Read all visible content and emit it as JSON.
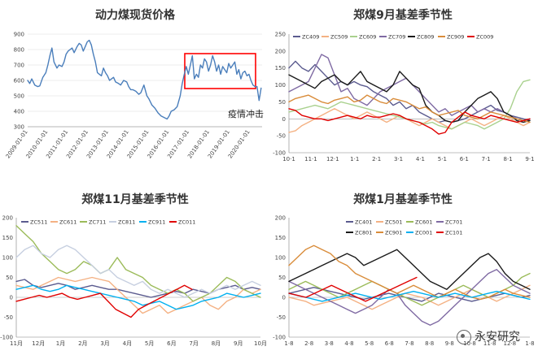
{
  "chart_data": [
    {
      "type": "line",
      "title": "动力煤现货价格",
      "ylim": [
        300,
        900
      ],
      "yticks": [
        300,
        400,
        500,
        600,
        700,
        800,
        900
      ],
      "xlim": [
        2009.0,
        2020.6
      ],
      "xticks": [
        "2009-01-01",
        "2010-01-01",
        "2011-01-01",
        "2012-01-01",
        "2013-01-01",
        "2014-01-01",
        "2015-01-01",
        "2016-01-01",
        "2017-01-01",
        "2018-01-01",
        "2019-01-01",
        "2020-01-01"
      ],
      "series": [
        {
          "color": "#4a7ebb",
          "x": [
            2009.0,
            2009.1,
            2009.2,
            2009.35,
            2009.5,
            2009.6,
            2009.75,
            2009.9,
            2010.0,
            2010.1,
            2010.2,
            2010.3,
            2010.45,
            2010.55,
            2010.7,
            2010.8,
            2010.9,
            2011.0,
            2011.1,
            2011.2,
            2011.3,
            2011.45,
            2011.55,
            2011.65,
            2011.75,
            2011.85,
            2011.95,
            2012.05,
            2012.15,
            2012.25,
            2012.35,
            2012.45,
            2012.55,
            2012.65,
            2012.75,
            2012.85,
            2012.95,
            2013.05,
            2013.15,
            2013.25,
            2013.35,
            2013.5,
            2013.6,
            2013.75,
            2013.9,
            2014.0,
            2014.1,
            2014.2,
            2014.35,
            2014.5,
            2014.6,
            2014.75,
            2014.9,
            2015.0,
            2015.15,
            2015.3,
            2015.45,
            2015.6,
            2015.75,
            2015.9,
            2016.0,
            2016.1,
            2016.25,
            2016.4,
            2016.55,
            2016.65,
            2016.75,
            2016.85,
            2016.95,
            2017.05,
            2017.15,
            2017.25,
            2017.35,
            2017.45,
            2017.55,
            2017.65,
            2017.75,
            2017.85,
            2017.95,
            2018.05,
            2018.15,
            2018.25,
            2018.35,
            2018.45,
            2018.55,
            2018.65,
            2018.75,
            2018.85,
            2018.95,
            2019.05,
            2019.15,
            2019.25,
            2019.35,
            2019.45,
            2019.55,
            2019.65,
            2019.75,
            2019.85,
            2019.95,
            2020.05,
            2020.15,
            2020.25,
            2020.35,
            2020.45,
            2020.55
          ],
          "y": [
            600,
            580,
            610,
            570,
            560,
            565,
            620,
            650,
            700,
            760,
            810,
            720,
            680,
            700,
            690,
            720,
            770,
            790,
            800,
            810,
            780,
            820,
            840,
            830,
            790,
            820,
            850,
            860,
            830,
            770,
            720,
            650,
            640,
            630,
            680,
            650,
            630,
            600,
            610,
            620,
            590,
            580,
            570,
            600,
            590,
            560,
            540,
            540,
            530,
            510,
            520,
            570,
            500,
            480,
            440,
            420,
            390,
            370,
            360,
            350,
            370,
            400,
            410,
            430,
            500,
            580,
            640,
            690,
            640,
            700,
            760,
            610,
            640,
            620,
            700,
            680,
            740,
            720,
            660,
            700,
            760,
            720,
            660,
            700,
            640,
            690,
            670,
            650,
            710,
            680,
            700,
            720,
            640,
            670,
            610,
            650,
            660,
            630,
            640,
            600,
            570,
            560,
            560,
            470,
            550
          ]
        }
      ],
      "annotations": [
        {
          "text": "疫情冲击"
        }
      ]
    },
    {
      "type": "line",
      "title": "郑煤9月基差季节性",
      "ylim": [
        -100,
        250
      ],
      "yticks": [
        -100,
        -50,
        0,
        50,
        100,
        150,
        200,
        250
      ],
      "xticks": [
        "10·1",
        "11·1",
        "12·1",
        "1·1",
        "2·1",
        "3·1",
        "4·1",
        "5·1",
        "6·1",
        "7·1",
        "8·1",
        "9·1"
      ],
      "series": [
        {
          "name": "ZC409",
          "color": "#5b5b8f",
          "y": [
            150,
            170,
            150,
            140,
            160,
            140,
            120,
            100,
            110,
            100,
            110,
            100,
            95,
            80,
            70,
            60,
            40,
            50,
            30,
            40,
            20,
            10,
            0,
            -10,
            -5,
            -10,
            -5,
            0,
            10,
            20,
            30,
            40,
            25,
            20,
            10,
            5,
            0,
            -5
          ]
        },
        {
          "name": "ZC509",
          "color": "#f4b183",
          "y": [
            -40,
            -35,
            -20,
            -10,
            0,
            10,
            20,
            30,
            20,
            10,
            0,
            10,
            20,
            10,
            0,
            -10,
            0,
            10,
            0,
            -10,
            -20,
            -10,
            0,
            -10,
            -20,
            -30,
            -20,
            -10,
            0,
            -10,
            -20,
            -10,
            0,
            10,
            0,
            -10,
            -20,
            -10
          ]
        },
        {
          "name": "ZC609",
          "color": "#a9d18e",
          "y": [
            20,
            25,
            30,
            35,
            40,
            35,
            30,
            40,
            50,
            45,
            40,
            35,
            30,
            25,
            20,
            15,
            10,
            5,
            0,
            -5,
            -10,
            -15,
            -10,
            -20,
            -25,
            -30,
            -20,
            -10,
            -15,
            -20,
            -30,
            -20,
            -10,
            0,
            30,
            80,
            110,
            115
          ]
        },
        {
          "name": "ZC709",
          "color": "#7f6aa3",
          "y": [
            80,
            90,
            100,
            110,
            150,
            190,
            180,
            130,
            80,
            90,
            60,
            50,
            40,
            60,
            80,
            90,
            100,
            110,
            120,
            100,
            80,
            60,
            40,
            20,
            30,
            10,
            20,
            30,
            40,
            20,
            30,
            20,
            30,
            20,
            10,
            0,
            -5,
            0
          ]
        },
        {
          "name": "ZC809",
          "color": "#1a1a1a",
          "y": [
            130,
            120,
            110,
            100,
            90,
            110,
            120,
            130,
            110,
            100,
            120,
            140,
            110,
            100,
            90,
            80,
            100,
            140,
            120,
            100,
            90,
            40,
            20,
            10,
            -5,
            -10,
            -5,
            20,
            40,
            60,
            70,
            80,
            60,
            20,
            10,
            -5,
            -10,
            -5
          ]
        },
        {
          "name": "ZC909",
          "color": "#d98c3a",
          "y": [
            50,
            60,
            65,
            70,
            60,
            50,
            45,
            55,
            60,
            65,
            50,
            55,
            70,
            60,
            50,
            45,
            60,
            55,
            50,
            40,
            30,
            35,
            20,
            10,
            15,
            20,
            25,
            10,
            5,
            0,
            10,
            20,
            15,
            10,
            5,
            0,
            -5,
            -10
          ]
        },
        {
          "name": "ZC009",
          "color": "#e00000",
          "y": [
            30,
            25,
            10,
            5,
            0,
            0,
            -5,
            0,
            5,
            10,
            5,
            0,
            10,
            5,
            5,
            10,
            15,
            10,
            0,
            -5,
            -10,
            -20,
            -30,
            -45,
            -40,
            -10,
            5,
            20,
            10,
            5,
            0,
            10,
            5,
            0,
            -5,
            -10,
            -5,
            0
          ]
        }
      ]
    },
    {
      "type": "line",
      "title": "郑煤11月基差季节性",
      "ylim": [
        -100,
        200
      ],
      "yticks": [
        -100,
        -50,
        0,
        50,
        100,
        150,
        200
      ],
      "xticks": [
        "11月",
        "12月",
        "1月",
        "2月",
        "3月",
        "4月",
        "5月",
        "6月",
        "7月",
        "8月",
        "9月",
        "10月"
      ],
      "series": [
        {
          "name": "ZC511",
          "color": "#5b5b8f",
          "y": [
            40,
            45,
            30,
            25,
            30,
            35,
            30,
            20,
            25,
            30,
            25,
            20,
            20,
            15,
            10,
            5,
            0,
            5,
            10,
            15,
            10,
            20,
            15,
            10,
            20,
            25,
            30,
            20,
            25,
            20
          ]
        },
        {
          "name": "ZC611",
          "color": "#f4b183",
          "y": [
            30,
            25,
            20,
            30,
            40,
            50,
            45,
            40,
            45,
            50,
            45,
            40,
            20,
            0,
            -20,
            -40,
            -30,
            -20,
            -40,
            -30,
            -20,
            -10,
            0,
            -20,
            -30,
            -10,
            0,
            20,
            10,
            20
          ]
        },
        {
          "name": "ZC711",
          "color": "#9bbb59",
          "y": [
            180,
            160,
            140,
            110,
            90,
            70,
            60,
            70,
            90,
            80,
            60,
            70,
            100,
            70,
            60,
            50,
            30,
            20,
            10,
            20,
            10,
            -10,
            0,
            10,
            30,
            50,
            40,
            20,
            10,
            0
          ]
        },
        {
          "name": "ZC811",
          "color": "#c6cfe0",
          "y": [
            100,
            120,
            130,
            110,
            100,
            120,
            130,
            120,
            100,
            80,
            60,
            70,
            50,
            40,
            30,
            40,
            20,
            10,
            20,
            10,
            0,
            10,
            20,
            10,
            20,
            30,
            20,
            30,
            40,
            30
          ]
        },
        {
          "name": "ZC911",
          "color": "#00b0f0",
          "y": [
            20,
            25,
            30,
            20,
            15,
            20,
            30,
            25,
            20,
            15,
            10,
            5,
            0,
            -5,
            -10,
            -20,
            -15,
            -10,
            -20,
            -30,
            -25,
            -20,
            -10,
            -5,
            0,
            10,
            5,
            0,
            5,
            10
          ]
        },
        {
          "name": "ZC011",
          "color": "#e00000",
          "y": [
            -10,
            -5,
            0,
            5,
            0,
            5,
            10,
            0,
            -5,
            0,
            5,
            10,
            -10,
            -30,
            -40,
            -50,
            -30,
            -20,
            -10,
            0,
            10,
            20,
            30,
            20
          ]
        }
      ]
    },
    {
      "type": "line",
      "title": "郑煤1月基差季节性",
      "ylim": [
        -100,
        200
      ],
      "yticks": [
        -100,
        -50,
        0,
        50,
        100,
        150,
        200
      ],
      "xticks": [
        "1·8",
        "2·8",
        "3·8",
        "4·8",
        "5·8",
        "6·8",
        "7·8",
        "8·8",
        "9·8",
        "10·8",
        "11·8",
        "12·8",
        "1·8"
      ],
      "series": [
        {
          "name": "ZC401",
          "color": "#5b5b8f",
          "y": [
            10,
            15,
            20,
            25,
            20,
            15,
            10,
            5,
            0,
            -5,
            0,
            5,
            10,
            5,
            0,
            -5,
            -10,
            0,
            10,
            5,
            0,
            -5,
            -10,
            -5,
            0,
            5,
            10,
            5,
            0,
            5
          ]
        },
        {
          "name": "ZC501",
          "color": "#f4b183",
          "y": [
            0,
            -5,
            -10,
            -20,
            -15,
            -10,
            -5,
            0,
            -10,
            -20,
            -30,
            -20,
            -10,
            0,
            10,
            5,
            0,
            -10,
            -20,
            -10,
            0,
            10,
            20,
            10,
            0,
            -10,
            0,
            10,
            20,
            30
          ]
        },
        {
          "name": "ZC601",
          "color": "#9bbb59",
          "y": [
            20,
            30,
            40,
            30,
            20,
            10,
            0,
            10,
            20,
            30,
            40,
            30,
            20,
            10,
            0,
            -10,
            -20,
            -10,
            0,
            10,
            20,
            30,
            20,
            10,
            0,
            10,
            20,
            30,
            50,
            60
          ]
        },
        {
          "name": "ZC701",
          "color": "#7f6aa3",
          "y": [
            40,
            30,
            20,
            10,
            0,
            -10,
            -20,
            -30,
            -40,
            -30,
            -20,
            0,
            20,
            10,
            -20,
            -40,
            -60,
            -70,
            -60,
            -40,
            -20,
            0,
            20,
            40,
            60,
            70,
            50,
            30,
            20,
            10
          ]
        },
        {
          "name": "ZC801",
          "color": "#1a1a1a",
          "y": [
            40,
            50,
            60,
            70,
            80,
            90,
            100,
            110,
            100,
            80,
            90,
            100,
            110,
            120,
            100,
            80,
            60,
            40,
            30,
            20,
            40,
            60,
            80,
            100,
            110,
            90,
            60,
            40,
            30,
            20
          ]
        },
        {
          "name": "ZC901",
          "color": "#d98c3a",
          "y": [
            80,
            100,
            120,
            130,
            120,
            110,
            90,
            80,
            60,
            50,
            40,
            30,
            20,
            10,
            20,
            30,
            20,
            10,
            0,
            10,
            20,
            10,
            0,
            -5,
            0,
            10,
            20,
            10,
            5,
            0
          ]
        },
        {
          "name": "ZC001",
          "color": "#00b0f0",
          "y": [
            10,
            5,
            0,
            -5,
            -10,
            -5,
            0,
            5,
            10,
            5,
            0,
            -5,
            0,
            5,
            10,
            15,
            10,
            5,
            0,
            5,
            10,
            5,
            0,
            5,
            10,
            15,
            10,
            5,
            0,
            -5
          ]
        },
        {
          "name": "ZC101",
          "color": "#e00000",
          "y": [
            10,
            5,
            0,
            10,
            20,
            30,
            20,
            10,
            0,
            -10,
            0,
            10,
            20,
            30,
            40,
            50
          ]
        }
      ]
    }
  ],
  "watermark": {
    "text": "永安研究",
    "icon": "wechat-icon"
  }
}
